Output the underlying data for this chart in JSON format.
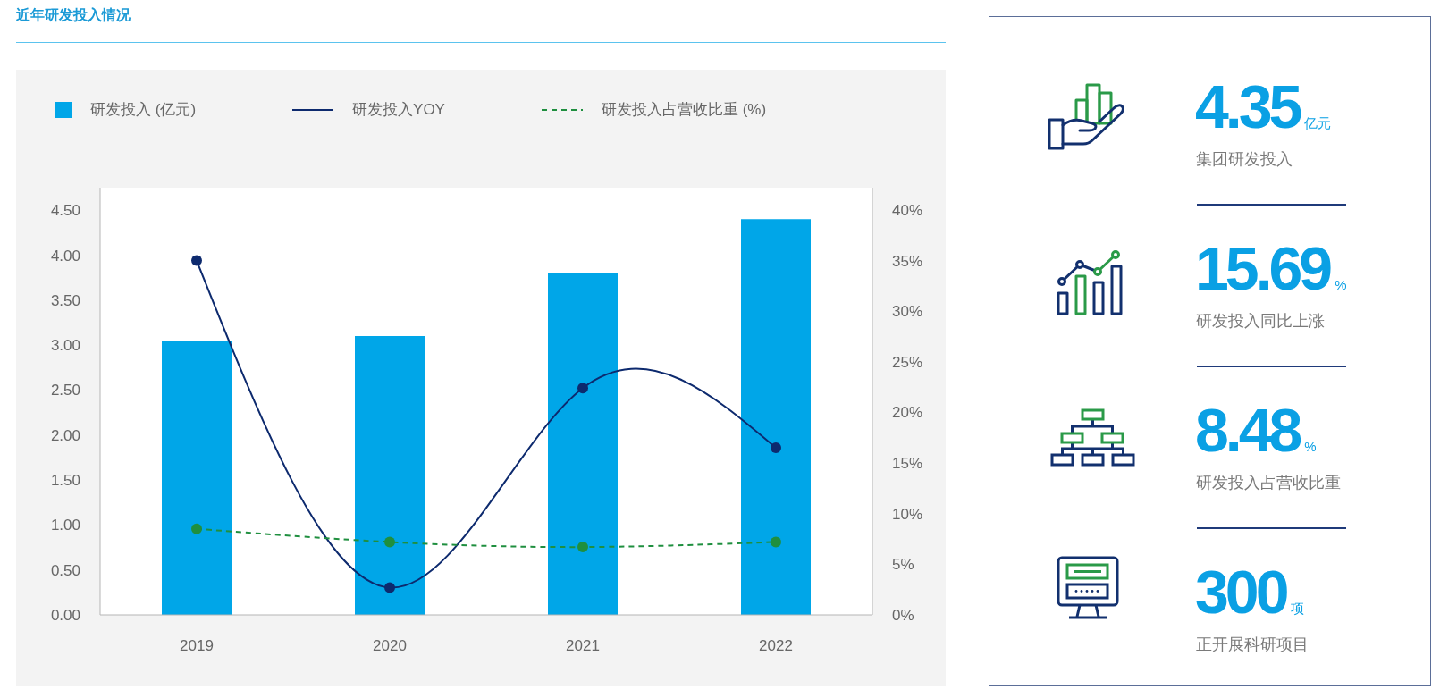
{
  "chart_data": [
    {
      "type": "bar",
      "title": "近年研发投入情况",
      "categories": [
        "2019",
        "2020",
        "2021",
        "2022"
      ],
      "series": [
        {
          "name": "研发投入 (亿元)",
          "type": "bar",
          "color": "#00a6e8",
          "values": [
            3.05,
            3.1,
            3.8,
            4.4
          ]
        },
        {
          "name": "研发投入YOY",
          "type": "line",
          "axis": "y2",
          "color": "#0d2a6e",
          "line_style": "solid",
          "values": [
            35,
            2.7,
            22.4,
            16.5
          ]
        },
        {
          "name": "研发投入占营收比重 (%)",
          "type": "line",
          "axis": "y2",
          "color": "#1f8f3f",
          "line_style": "dashed",
          "values": [
            8.5,
            7.2,
            6.7,
            7.2
          ]
        }
      ],
      "ylim": [
        0,
        4.75
      ],
      "yticks": [
        {
          "value": 0,
          "label": "0.00"
        },
        {
          "value": 0.5,
          "label": "0.50"
        },
        {
          "value": 1,
          "label": "1.00"
        },
        {
          "value": 1.5,
          "label": "1.50"
        },
        {
          "value": 2,
          "label": "2.00"
        },
        {
          "value": 2.5,
          "label": "2.50"
        },
        {
          "value": 3,
          "label": "3.00"
        },
        {
          "value": 3.5,
          "label": "3.50"
        },
        {
          "value": 4,
          "label": "4.00"
        },
        {
          "value": 4.5,
          "label": "4.50"
        }
      ],
      "y2lim": [
        0,
        42.2
      ],
      "y2ticks": [
        {
          "value": 0,
          "label": "0%"
        },
        {
          "value": 5,
          "label": "5%"
        },
        {
          "value": 10,
          "label": "10%"
        },
        {
          "value": 15,
          "label": "15%"
        },
        {
          "value": 20,
          "label": "20%"
        },
        {
          "value": 25,
          "label": "25%"
        },
        {
          "value": 30,
          "label": "30%"
        },
        {
          "value": 35,
          "label": "35%"
        },
        {
          "value": 40,
          "label": "40%"
        }
      ],
      "legend": "top",
      "marker": "circle"
    },
    {
      "type": "other",
      "categories": [
        "集团研发投入",
        "研发投入同比上涨",
        "研发投入占营收比重",
        "正开展科研项目"
      ],
      "values": [
        4.35,
        15.69,
        8.48,
        300
      ],
      "value_labels": [
        "4.35亿元",
        "15.69%",
        "8.48%",
        "300项"
      ]
    }
  ]
}
